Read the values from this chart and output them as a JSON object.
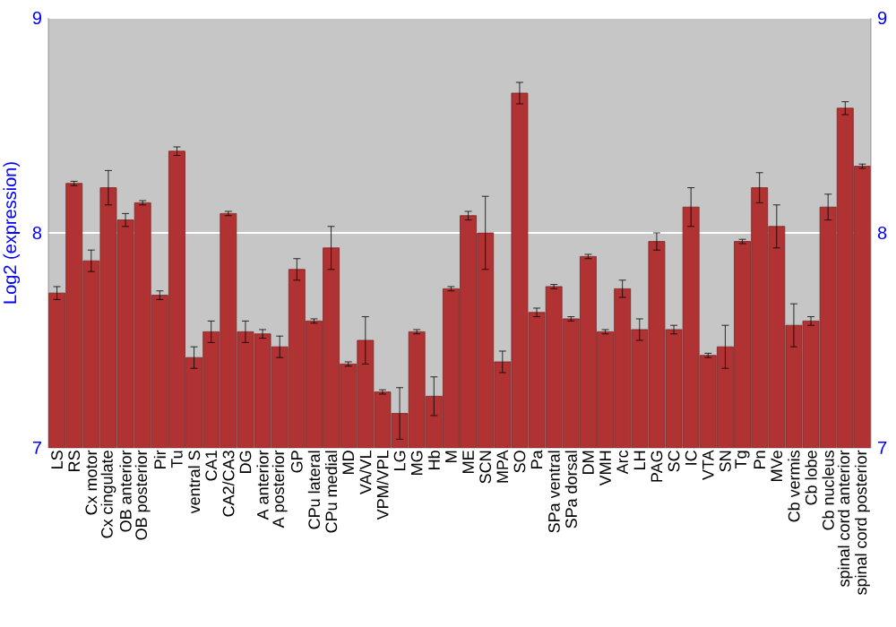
{
  "chart_data": {
    "type": "bar",
    "ylabel": "Log2 (expression)",
    "categories": [
      "LS",
      "RS",
      "Cx motor",
      "Cx cingulate",
      "OB anterior",
      "OB posterior",
      "Pir",
      "Tu",
      "ventral S",
      "CA1",
      "CA2/CA3",
      "DG",
      "A anterior",
      "A posterior",
      "GP",
      "CPu lateral",
      "CPu medial",
      "MD",
      "VA/VL",
      "VPM/VPL",
      "LG",
      "MG",
      "Hb",
      "M",
      "ME",
      "SCN",
      "MPA",
      "SO",
      "Pa",
      "SPa ventral",
      "SPa dorsal",
      "DM",
      "VMH",
      "Arc",
      "LH",
      "PAG",
      "SC",
      "IC",
      "VTA",
      "SN",
      "Tg",
      "Pn",
      "MVe",
      "Cb vermis",
      "Cb lobe",
      "Cb nucleus",
      "spinal cord anterior",
      "spinal cord posterior"
    ],
    "values": [
      7.72,
      8.23,
      7.87,
      8.21,
      8.06,
      8.14,
      7.71,
      8.38,
      7.42,
      7.54,
      8.09,
      7.54,
      7.53,
      7.47,
      7.83,
      7.59,
      7.93,
      7.39,
      7.5,
      7.26,
      7.16,
      7.54,
      7.24,
      7.74,
      8.08,
      8.0,
      7.4,
      8.65,
      7.63,
      7.75,
      7.6,
      7.89,
      7.54,
      7.74,
      7.55,
      7.96,
      7.55,
      8.12,
      7.43,
      7.47,
      7.96,
      8.21,
      8.03,
      7.57,
      7.59,
      8.12,
      8.58,
      8.31
    ],
    "errors": [
      0.03,
      0.01,
      0.05,
      0.08,
      0.03,
      0.01,
      0.02,
      0.02,
      0.05,
      0.05,
      0.01,
      0.05,
      0.02,
      0.05,
      0.05,
      0.01,
      0.1,
      0.01,
      0.11,
      0.01,
      0.12,
      0.01,
      0.09,
      0.01,
      0.02,
      0.17,
      0.05,
      0.05,
      0.02,
      0.01,
      0.01,
      0.01,
      0.01,
      0.04,
      0.05,
      0.04,
      0.02,
      0.09,
      0.01,
      0.1,
      0.01,
      0.07,
      0.1,
      0.1,
      0.02,
      0.06,
      0.03,
      0.01
    ],
    "color": "#b03232",
    "ylim": [
      7,
      9
    ],
    "yticks": [
      7,
      8,
      9
    ],
    "y2lim": [
      7,
      9
    ],
    "y2ticks": [
      7,
      8,
      9
    ],
    "grid": "y"
  }
}
